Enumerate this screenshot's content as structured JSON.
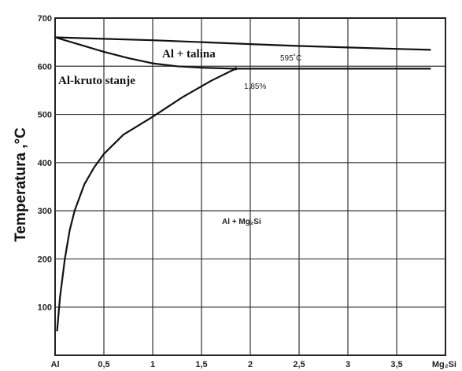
{
  "chart_data": {
    "type": "line",
    "title": "",
    "ylabel": "Temperatura ,°C",
    "xlabel": "",
    "xlim": [
      0,
      4.0
    ],
    "ylim": [
      0,
      700
    ],
    "x_ticks": [
      "Al",
      "0,5",
      "1",
      "1,5",
      "2",
      "2,5",
      "3",
      "3,5",
      "Mg₂Si"
    ],
    "y_ticks": [
      "100",
      "200",
      "300",
      "400",
      "500",
      "600",
      "700"
    ],
    "grid": true,
    "regions": [
      {
        "label": "Al + talina"
      },
      {
        "label": "Al-kruto stanje"
      },
      {
        "label": "Al + Mg₂Si"
      }
    ],
    "annotations": [
      {
        "text": "595˚C"
      },
      {
        "text": "1,85%"
      }
    ],
    "series": [
      {
        "values": [
          [
            0,
            660
          ],
          [
            0.5,
            657
          ],
          [
            1.0,
            654
          ],
          [
            1.5,
            650
          ],
          [
            2.0,
            646
          ],
          [
            2.5,
            642
          ],
          [
            3.0,
            639
          ],
          [
            3.5,
            636
          ],
          [
            3.85,
            634
          ]
        ]
      },
      {
        "values": [
          [
            0,
            660
          ],
          [
            0.25,
            645
          ],
          [
            0.5,
            630
          ],
          [
            0.75,
            617
          ],
          [
            1.0,
            606
          ],
          [
            1.25,
            600
          ],
          [
            1.5,
            597
          ],
          [
            1.85,
            595
          ]
        ]
      },
      {
        "values": [
          [
            1.85,
            595
          ],
          [
            3.85,
            595
          ]
        ]
      },
      {
        "values": [
          [
            0.02,
            50
          ],
          [
            0.05,
            120
          ],
          [
            0.1,
            200
          ],
          [
            0.15,
            260
          ],
          [
            0.2,
            300
          ],
          [
            0.3,
            355
          ],
          [
            0.4,
            390
          ],
          [
            0.5,
            418
          ],
          [
            0.7,
            458
          ],
          [
            1.0,
            495
          ],
          [
            1.3,
            535
          ],
          [
            1.6,
            570
          ],
          [
            1.85,
            595
          ]
        ]
      }
    ]
  }
}
